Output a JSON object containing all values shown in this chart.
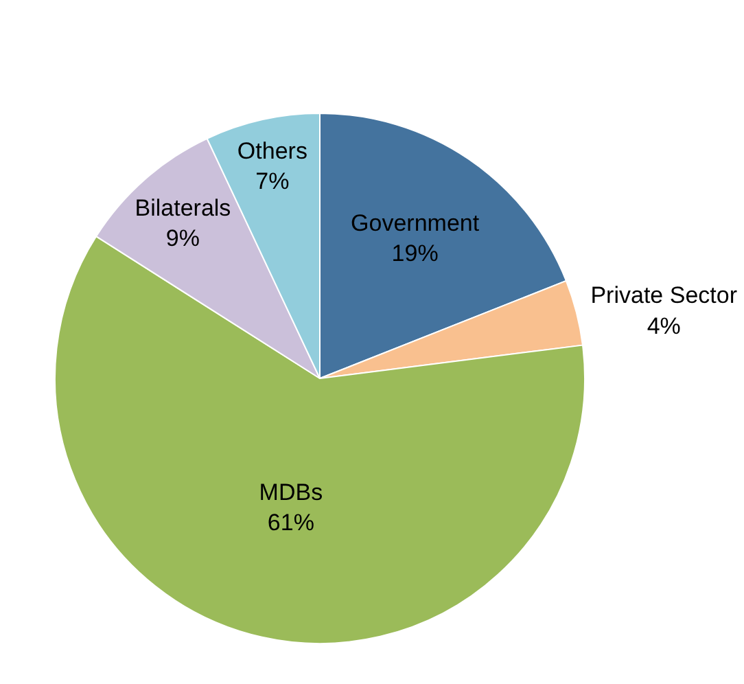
{
  "chart_data": {
    "type": "pie",
    "categories": [
      "Government",
      "Private Sector",
      "MDBs",
      "Bilaterals",
      "Others"
    ],
    "values": [
      19,
      4,
      61,
      9,
      7
    ],
    "value_labels": [
      "19%",
      "4%",
      "61%",
      "9%",
      "7%"
    ],
    "colors": [
      "#44739e",
      "#f9c08f",
      "#9bbb59",
      "#cbc0da",
      "#92cddc"
    ]
  }
}
